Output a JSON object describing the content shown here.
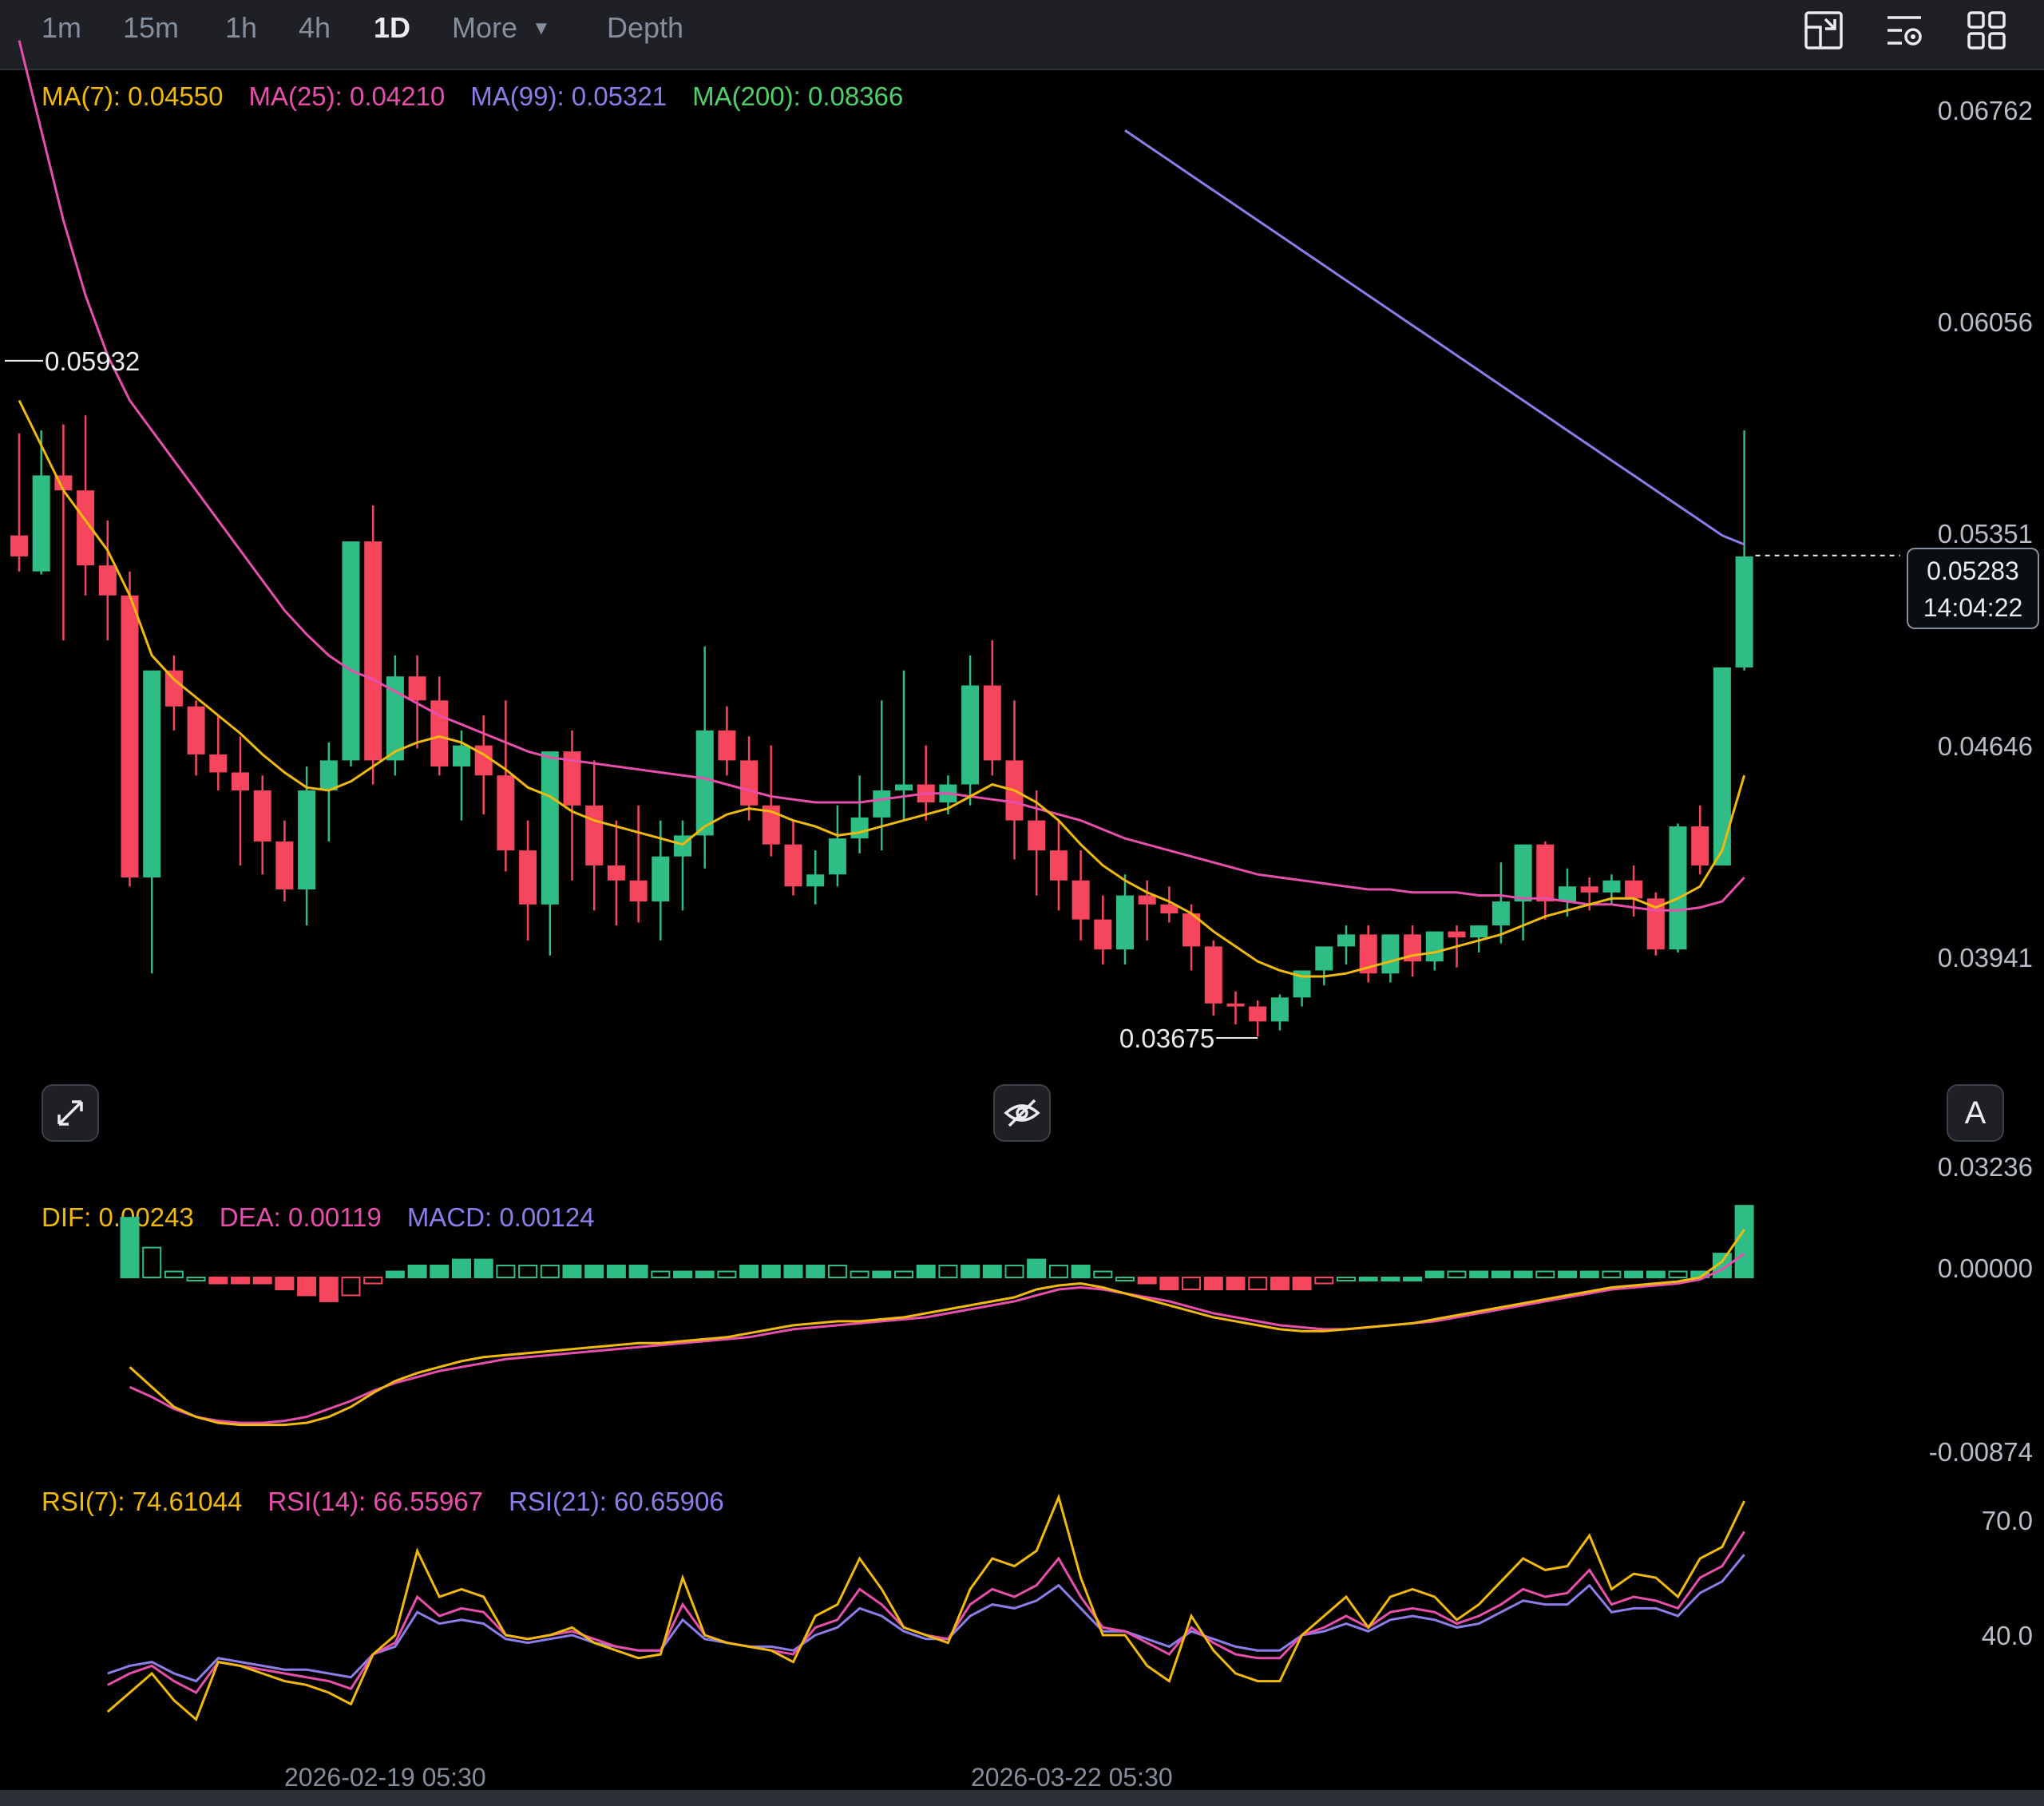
{
  "toolbar": {
    "timeframes": [
      "1m",
      "15m",
      "1h",
      "4h",
      "1D"
    ],
    "active": "1D",
    "more_label": "More",
    "depth_label": "Depth",
    "icons": [
      "chart-type-icon",
      "indicator-settings-icon",
      "layout-grid-icon"
    ]
  },
  "ma_legend": {
    "ma7": "MA(7): 0.04550",
    "ma25": "MA(25): 0.04210",
    "ma99": "MA(99): 0.05321",
    "ma200": "MA(200): 0.08366"
  },
  "macd_legend": {
    "dif": "DIF: 0.00243",
    "dea": "DEA: 0.00119",
    "macd": "MACD: 0.00124"
  },
  "rsi_legend": {
    "rsi7": "RSI(7): 74.61044",
    "rsi14": "RSI(14): 66.55967",
    "rsi21": "RSI(21): 60.65906"
  },
  "price_axis": [
    "0.06762",
    "0.06056",
    "0.05351",
    "0.04646",
    "0.03941",
    "0.03236"
  ],
  "macd_axis": [
    "0.00000",
    "-0.00874"
  ],
  "rsi_axis": [
    "70.0",
    "40.0"
  ],
  "current_price": "0.05283",
  "countdown": "14:04:22",
  "high_marker": "0.05932",
  "low_marker": "0.03675",
  "dates": [
    "2026-02-19 05:30",
    "2026-03-22 05:30"
  ],
  "buttons": {
    "auto_label": "A"
  },
  "colors": {
    "up": "#2ebd85",
    "down": "#f6465d",
    "ma7": "#f0b90b",
    "ma25": "#e84fac",
    "ma99": "#8c7ee8",
    "ma200": "#4fd06b",
    "bg": "#000000"
  },
  "chart_data": {
    "type": "candlestick",
    "interval": "1D",
    "candles_ohlc": [
      [
        0.0535,
        0.0569,
        0.0528,
        0.0523
      ],
      [
        0.0523,
        0.057,
        0.0555,
        0.0522
      ],
      [
        0.0555,
        0.0572,
        0.055,
        0.05
      ],
      [
        0.055,
        0.0575,
        0.0525,
        0.0515
      ],
      [
        0.0525,
        0.054,
        0.0515,
        0.05
      ],
      [
        0.0515,
        0.0523,
        0.0421,
        0.0418
      ],
      [
        0.0421,
        0.048,
        0.049,
        0.0389
      ],
      [
        0.049,
        0.0495,
        0.0478,
        0.047
      ],
      [
        0.0478,
        0.048,
        0.0462,
        0.0455
      ],
      [
        0.0462,
        0.0475,
        0.0456,
        0.045
      ],
      [
        0.0456,
        0.0468,
        0.045,
        0.0425
      ],
      [
        0.045,
        0.0455,
        0.0433,
        0.0422
      ],
      [
        0.0433,
        0.044,
        0.0417,
        0.0413
      ],
      [
        0.0417,
        0.0458,
        0.045,
        0.0405
      ],
      [
        0.045,
        0.0466,
        0.046,
        0.0433
      ],
      [
        0.046,
        0.0531,
        0.0533,
        0.0458
      ],
      [
        0.0533,
        0.0545,
        0.046,
        0.0452
      ],
      [
        0.046,
        0.0495,
        0.0488,
        0.0455
      ],
      [
        0.0488,
        0.0495,
        0.048,
        0.0464
      ],
      [
        0.048,
        0.0488,
        0.0458,
        0.0455
      ],
      [
        0.0458,
        0.047,
        0.0465,
        0.044
      ],
      [
        0.0465,
        0.0475,
        0.0455,
        0.0442
      ],
      [
        0.0455,
        0.048,
        0.043,
        0.0423
      ],
      [
        0.043,
        0.044,
        0.0412,
        0.04
      ],
      [
        0.0412,
        0.0452,
        0.0463,
        0.0395
      ],
      [
        0.0463,
        0.047,
        0.0445,
        0.042
      ],
      [
        0.0445,
        0.046,
        0.0425,
        0.041
      ],
      [
        0.0425,
        0.044,
        0.042,
        0.0405
      ],
      [
        0.042,
        0.0445,
        0.0413,
        0.0406
      ],
      [
        0.0413,
        0.044,
        0.0428,
        0.04
      ],
      [
        0.0428,
        0.044,
        0.0435,
        0.041
      ],
      [
        0.0435,
        0.0498,
        0.047,
        0.0424
      ],
      [
        0.047,
        0.0478,
        0.046,
        0.0455
      ],
      [
        0.046,
        0.0468,
        0.0445,
        0.044
      ],
      [
        0.0445,
        0.0465,
        0.0432,
        0.0428
      ],
      [
        0.0432,
        0.044,
        0.0418,
        0.0415
      ],
      [
        0.0418,
        0.043,
        0.0422,
        0.0412
      ],
      [
        0.0422,
        0.0445,
        0.0434,
        0.0418
      ],
      [
        0.0434,
        0.0455,
        0.0441,
        0.0429
      ],
      [
        0.0441,
        0.048,
        0.045,
        0.043
      ],
      [
        0.045,
        0.049,
        0.0452,
        0.044
      ],
      [
        0.0452,
        0.0465,
        0.0446,
        0.044
      ],
      [
        0.0446,
        0.0455,
        0.0452,
        0.0442
      ],
      [
        0.0452,
        0.0495,
        0.0485,
        0.0445
      ],
      [
        0.0485,
        0.05,
        0.046,
        0.0455
      ],
      [
        0.046,
        0.048,
        0.044,
        0.0427
      ],
      [
        0.044,
        0.045,
        0.043,
        0.0415
      ],
      [
        0.043,
        0.044,
        0.042,
        0.041
      ],
      [
        0.042,
        0.043,
        0.0407,
        0.04
      ],
      [
        0.0407,
        0.0415,
        0.0397,
        0.0392
      ],
      [
        0.0397,
        0.0422,
        0.0415,
        0.0392
      ],
      [
        0.0415,
        0.042,
        0.0412,
        0.04
      ],
      [
        0.0412,
        0.0418,
        0.0409,
        0.0406
      ],
      [
        0.0409,
        0.0412,
        0.0398,
        0.039
      ],
      [
        0.0398,
        0.04,
        0.0379,
        0.0375
      ],
      [
        0.0379,
        0.0383,
        0.0378,
        0.0372
      ],
      [
        0.0378,
        0.038,
        0.0373,
        0.0368
      ],
      [
        0.0373,
        0.0382,
        0.0381,
        0.037
      ],
      [
        0.0381,
        0.0389,
        0.039,
        0.0378
      ],
      [
        0.039,
        0.0397,
        0.0398,
        0.0385
      ],
      [
        0.0398,
        0.0405,
        0.0402,
        0.0392
      ],
      [
        0.0402,
        0.0405,
        0.0389,
        0.0386
      ],
      [
        0.0389,
        0.0402,
        0.0402,
        0.0386
      ],
      [
        0.0402,
        0.0405,
        0.0393,
        0.0388
      ],
      [
        0.0393,
        0.0403,
        0.0403,
        0.039
      ],
      [
        0.0403,
        0.0405,
        0.0401,
        0.0391
      ],
      [
        0.0401,
        0.0405,
        0.0405,
        0.0396
      ],
      [
        0.0405,
        0.0426,
        0.0413,
        0.0399
      ],
      [
        0.0413,
        0.0432,
        0.0432,
        0.04
      ],
      [
        0.0432,
        0.0433,
        0.0413,
        0.0407
      ],
      [
        0.0413,
        0.0424,
        0.0418,
        0.0408
      ],
      [
        0.0418,
        0.0421,
        0.0416,
        0.041
      ],
      [
        0.0416,
        0.0422,
        0.042,
        0.0412
      ],
      [
        0.042,
        0.0425,
        0.0414,
        0.0408
      ],
      [
        0.0414,
        0.0416,
        0.0397,
        0.0395
      ],
      [
        0.0397,
        0.0439,
        0.0438,
        0.0396
      ],
      [
        0.0438,
        0.0445,
        0.0425,
        0.0422
      ],
      [
        0.0425,
        0.0491,
        0.0491,
        0.0425
      ],
      [
        0.0491,
        0.057,
        0.0528,
        0.049
      ]
    ],
    "high_label": 0.05932,
    "low_label": 0.03675,
    "last_price": 0.05283,
    "ylim": [
      0.03236,
      0.06762
    ],
    "price_ticks": [
      0.06762,
      0.06056,
      0.05351,
      0.04646,
      0.03941,
      0.03236
    ],
    "ma7_series": [
      0.058,
      0.0565,
      0.055,
      0.054,
      0.053,
      0.0515,
      0.0495,
      0.0487,
      0.0481,
      0.0475,
      0.0469,
      0.0462,
      0.0456,
      0.0451,
      0.045,
      0.0453,
      0.0458,
      0.0463,
      0.0466,
      0.0468,
      0.0466,
      0.0462,
      0.0457,
      0.0451,
      0.0448,
      0.0443,
      0.044,
      0.0438,
      0.0436,
      0.0434,
      0.0432,
      0.0438,
      0.0442,
      0.0444,
      0.0443,
      0.044,
      0.0438,
      0.0435,
      0.0436,
      0.0438,
      0.044,
      0.0442,
      0.0444,
      0.0448,
      0.0452,
      0.045,
      0.0446,
      0.044,
      0.0432,
      0.0425,
      0.042,
      0.0416,
      0.0413,
      0.0409,
      0.0403,
      0.0398,
      0.0393,
      0.039,
      0.0388,
      0.0388,
      0.0389,
      0.0391,
      0.0393,
      0.0395,
      0.0396,
      0.0398,
      0.04,
      0.0402,
      0.0405,
      0.0408,
      0.041,
      0.0412,
      0.0414,
      0.0414,
      0.0411,
      0.0414,
      0.0418,
      0.043,
      0.0455
    ],
    "ma25_series": [
      0.07,
      0.067,
      0.064,
      0.0615,
      0.0595,
      0.058,
      0.057,
      0.056,
      0.055,
      0.054,
      0.053,
      0.052,
      0.051,
      0.0502,
      0.0495,
      0.049,
      0.0487,
      0.0483,
      0.0479,
      0.0475,
      0.0472,
      0.0469,
      0.0466,
      0.0463,
      0.0461,
      0.046,
      0.0459,
      0.0458,
      0.0457,
      0.0456,
      0.0455,
      0.0454,
      0.0452,
      0.045,
      0.0448,
      0.0447,
      0.0446,
      0.0446,
      0.0446,
      0.0447,
      0.0448,
      0.0449,
      0.0449,
      0.0448,
      0.0447,
      0.0446,
      0.0444,
      0.0442,
      0.044,
      0.0437,
      0.0434,
      0.0432,
      0.043,
      0.0428,
      0.0426,
      0.0424,
      0.0422,
      0.0421,
      0.042,
      0.0419,
      0.0418,
      0.0417,
      0.0417,
      0.0416,
      0.0416,
      0.0416,
      0.0415,
      0.0415,
      0.0414,
      0.0414,
      0.0413,
      0.0412,
      0.0412,
      0.0411,
      0.041,
      0.041,
      0.0411,
      0.0413,
      0.0421
    ],
    "ma99_series": [
      0.067,
      0.0665,
      0.066,
      0.0655,
      0.065,
      0.0645,
      0.064,
      0.0635,
      0.063,
      0.0625,
      0.062,
      0.0615,
      0.061,
      0.0605,
      0.06,
      0.0595,
      0.059,
      0.0585,
      0.058,
      0.0575,
      0.057,
      0.0565,
      0.056,
      0.0555,
      0.055,
      0.0545,
      0.054,
      0.0535,
      0.0532
    ],
    "ma99_start_index": 50,
    "macd": {
      "dif": [
        -0.0045,
        -0.0055,
        -0.0065,
        -0.007,
        -0.0073,
        -0.0074,
        -0.0074,
        -0.0074,
        -0.0073,
        -0.007,
        -0.0065,
        -0.0058,
        -0.0052,
        -0.0048,
        -0.0045,
        -0.0042,
        -0.004,
        -0.0039,
        -0.0038,
        -0.0037,
        -0.0036,
        -0.0035,
        -0.0034,
        -0.0033,
        -0.0033,
        -0.0032,
        -0.0031,
        -0.003,
        -0.0028,
        -0.0026,
        -0.0024,
        -0.0023,
        -0.0022,
        -0.0022,
        -0.0021,
        -0.002,
        -0.0018,
        -0.0016,
        -0.0014,
        -0.0012,
        -0.001,
        -0.0006,
        -0.0004,
        -0.0003,
        -0.0005,
        -0.0008,
        -0.0011,
        -0.0014,
        -0.0017,
        -0.002,
        -0.0022,
        -0.0024,
        -0.0026,
        -0.0027,
        -0.0027,
        -0.0026,
        -0.0025,
        -0.0024,
        -0.0023,
        -0.0021,
        -0.0019,
        -0.0017,
        -0.0015,
        -0.0013,
        -0.0011,
        -0.0009,
        -0.0007,
        -0.0005,
        -0.0004,
        -0.0003,
        -0.0002,
        0.0,
        0.0008,
        0.0024
      ],
      "dea": [
        -0.0055,
        -0.006,
        -0.0066,
        -0.007,
        -0.0072,
        -0.0073,
        -0.0073,
        -0.0072,
        -0.007,
        -0.0066,
        -0.0062,
        -0.0057,
        -0.0053,
        -0.005,
        -0.0047,
        -0.0045,
        -0.0043,
        -0.0041,
        -0.004,
        -0.0039,
        -0.0038,
        -0.0037,
        -0.0036,
        -0.0035,
        -0.0034,
        -0.0033,
        -0.0032,
        -0.0031,
        -0.003,
        -0.0028,
        -0.0026,
        -0.0025,
        -0.0024,
        -0.0023,
        -0.0022,
        -0.0021,
        -0.002,
        -0.0018,
        -0.0016,
        -0.0014,
        -0.0012,
        -0.0009,
        -0.0006,
        -0.0005,
        -0.0006,
        -0.0008,
        -0.001,
        -0.0012,
        -0.0015,
        -0.0018,
        -0.002,
        -0.0022,
        -0.0024,
        -0.0025,
        -0.0026,
        -0.0026,
        -0.0025,
        -0.0024,
        -0.0023,
        -0.0022,
        -0.002,
        -0.0018,
        -0.0016,
        -0.0014,
        -0.0012,
        -0.001,
        -0.0008,
        -0.0006,
        -0.0005,
        -0.0004,
        -0.0003,
        -0.0001,
        0.0004,
        0.0012
      ]
    },
    "macd_ticks": [
      0.0,
      -0.00874
    ],
    "rsi": {
      "rsi7": [
        20,
        25,
        30,
        23,
        18,
        33,
        32,
        30,
        28,
        27,
        25,
        22,
        35,
        40,
        62,
        50,
        52,
        50,
        40,
        39,
        40,
        42,
        38,
        36,
        34,
        35,
        55,
        40,
        38,
        37,
        36,
        33,
        45,
        48,
        60,
        52,
        42,
        40,
        38,
        52,
        60,
        58,
        62,
        76,
        55,
        40,
        40,
        32,
        28,
        45,
        36,
        30,
        28,
        28,
        40,
        45,
        50,
        42,
        50,
        52,
        50,
        44,
        48,
        54,
        60,
        57,
        58,
        66,
        52,
        56,
        55,
        50,
        60,
        63,
        75
      ],
      "rsi14": [
        27,
        30,
        32,
        28,
        25,
        33,
        32,
        31,
        30,
        29,
        28,
        26,
        35,
        38,
        50,
        45,
        47,
        46,
        40,
        39,
        40,
        41,
        39,
        37,
        36,
        36,
        48,
        40,
        38,
        37,
        36,
        35,
        42,
        44,
        52,
        48,
        42,
        40,
        39,
        48,
        52,
        50,
        53,
        60,
        50,
        42,
        41,
        38,
        35,
        42,
        38,
        35,
        34,
        34,
        40,
        42,
        45,
        42,
        46,
        47,
        46,
        43,
        45,
        48,
        52,
        50,
        51,
        57,
        48,
        50,
        49,
        47,
        55,
        58,
        67
      ],
      "rsi21": [
        30,
        32,
        33,
        30,
        28,
        34,
        33,
        32,
        31,
        31,
        30,
        29,
        35,
        37,
        46,
        43,
        44,
        43,
        39,
        38,
        39,
        40,
        38,
        37,
        36,
        36,
        44,
        39,
        38,
        37,
        37,
        36,
        40,
        42,
        47,
        45,
        41,
        39,
        39,
        45,
        48,
        47,
        49,
        53,
        47,
        41,
        41,
        39,
        37,
        41,
        39,
        37,
        36,
        36,
        40,
        41,
        43,
        41,
        44,
        45,
        44,
        42,
        43,
        46,
        49,
        48,
        48,
        53,
        46,
        47,
        47,
        45,
        51,
        54,
        61
      ]
    },
    "rsi_ticks": [
      70.0,
      40.0
    ],
    "x_tick_labels": [
      "2026-02-19 05:30",
      "2026-03-22 05:30"
    ]
  }
}
